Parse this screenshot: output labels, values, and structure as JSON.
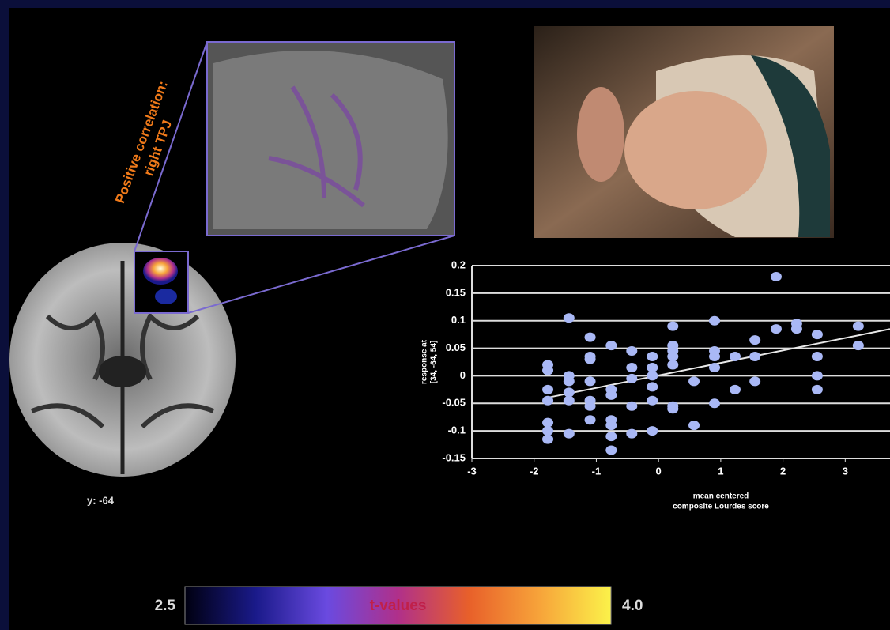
{
  "chart_data": {
    "type": "scatter",
    "xlabel": [
      "mean centered",
      "composite Lourdes score"
    ],
    "ylabel": [
      "response at",
      "[34, -64, 54]"
    ],
    "xlim": [
      -3,
      3.72
    ],
    "xticks": [
      -3,
      -2,
      -1,
      0,
      1,
      2,
      3
    ],
    "ylim": [
      -0.15,
      0.2
    ],
    "yticks": [
      -0.15,
      -0.1,
      -0.05,
      0,
      0.05,
      0.1,
      0.15,
      0.2
    ],
    "grid": true,
    "color": "#a9b8f5",
    "line_color": "#e8e8e8",
    "x": [
      -1.78,
      -1.78,
      -1.78,
      -1.78,
      -1.78,
      -1.78,
      -1.78,
      -1.44,
      -1.44,
      -1.44,
      -1.44,
      -1.44,
      -1.44,
      -1.1,
      -1.1,
      -1.1,
      -1.1,
      -1.1,
      -1.1,
      -1.1,
      -0.76,
      -0.76,
      -0.76,
      -0.76,
      -0.76,
      -0.76,
      -0.76,
      -0.43,
      -0.43,
      -0.43,
      -0.43,
      -0.43,
      -0.1,
      -0.1,
      -0.1,
      -0.1,
      -0.1,
      -0.1,
      0.23,
      0.23,
      0.23,
      0.23,
      0.23,
      0.23,
      0.23,
      0.57,
      0.57,
      0.9,
      0.9,
      0.9,
      0.9,
      0.9,
      1.23,
      1.23,
      1.55,
      1.55,
      1.55,
      1.89,
      1.89,
      2.22,
      2.22,
      2.55,
      2.55,
      2.55,
      2.55,
      3.21,
      3.21
    ],
    "y": [
      0.02,
      0.01,
      -0.025,
      -0.045,
      -0.085,
      -0.1,
      -0.115,
      0.105,
      0,
      -0.01,
      -0.03,
      -0.045,
      -0.105,
      0.07,
      0.035,
      0.03,
      -0.01,
      -0.045,
      -0.055,
      -0.08,
      0.055,
      -0.025,
      -0.035,
      -0.08,
      -0.09,
      -0.11,
      -0.135,
      0.045,
      0.015,
      -0.005,
      -0.055,
      -0.105,
      0.035,
      0.015,
      0,
      -0.02,
      -0.045,
      -0.1,
      0.09,
      0.055,
      0.045,
      0.035,
      0.02,
      -0.055,
      -0.06,
      -0.01,
      -0.09,
      0.1,
      0.045,
      0.035,
      0.015,
      -0.05,
      0.035,
      -0.025,
      0.065,
      0.035,
      -0.01,
      0.18,
      0.085,
      0.095,
      0.085,
      0.075,
      0.035,
      0,
      -0.025,
      0.09,
      0.055
    ],
    "trendline": {
      "x": [
        -1.8,
        3.72
      ],
      "y": [
        -0.04,
        0.085
      ]
    }
  },
  "annotation": [
    "Positive correlation:",
    "right TPJ"
  ],
  "slice_label": "y: -64",
  "colorbar": {
    "label": "t-values",
    "lim": [
      2.5,
      4.0
    ],
    "ticks": [
      2.5,
      {
        "value": 4.0,
        "label": "4.0"
      }
    ],
    "colors": [
      "#000010",
      "#1a1a8a",
      "#6a4ae0",
      "#b0308a",
      "#e8602a",
      "#f7a43a",
      "#fbf24a"
    ]
  }
}
